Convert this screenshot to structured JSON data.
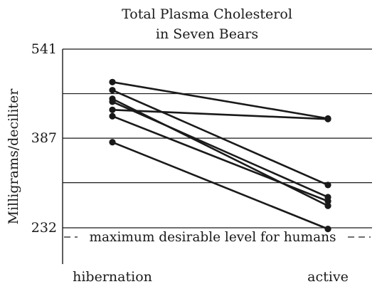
{
  "chart_data": {
    "type": "line",
    "title": "Total Plasma Cholesterol in Seven Bears",
    "title_lines": [
      "Total Plasma Cholesterol",
      "in Seven Bears"
    ],
    "xlabel": "",
    "ylabel": "Milligrams/deciliter",
    "categories": [
      "hibernation",
      "active"
    ],
    "ylim": [
      213,
      541
    ],
    "yticks": [
      232,
      387,
      541
    ],
    "gridlines": [
      232,
      310,
      387,
      464,
      541
    ],
    "grid": true,
    "legend": "none",
    "series": [
      {
        "values": [
          484,
          421
        ]
      },
      {
        "values": [
          470,
          306
        ]
      },
      {
        "values": [
          455,
          270
        ]
      },
      {
        "values": [
          450,
          285
        ]
      },
      {
        "values": [
          436,
          420
        ]
      },
      {
        "values": [
          425,
          278
        ]
      },
      {
        "values": [
          380,
          230
        ]
      }
    ],
    "reference_line": {
      "value": 216,
      "label": "maximum desirable level for humans"
    },
    "colors": {
      "line": "#1a1a1a",
      "grid": "#1a1a1a",
      "background": "#ffffff"
    }
  }
}
